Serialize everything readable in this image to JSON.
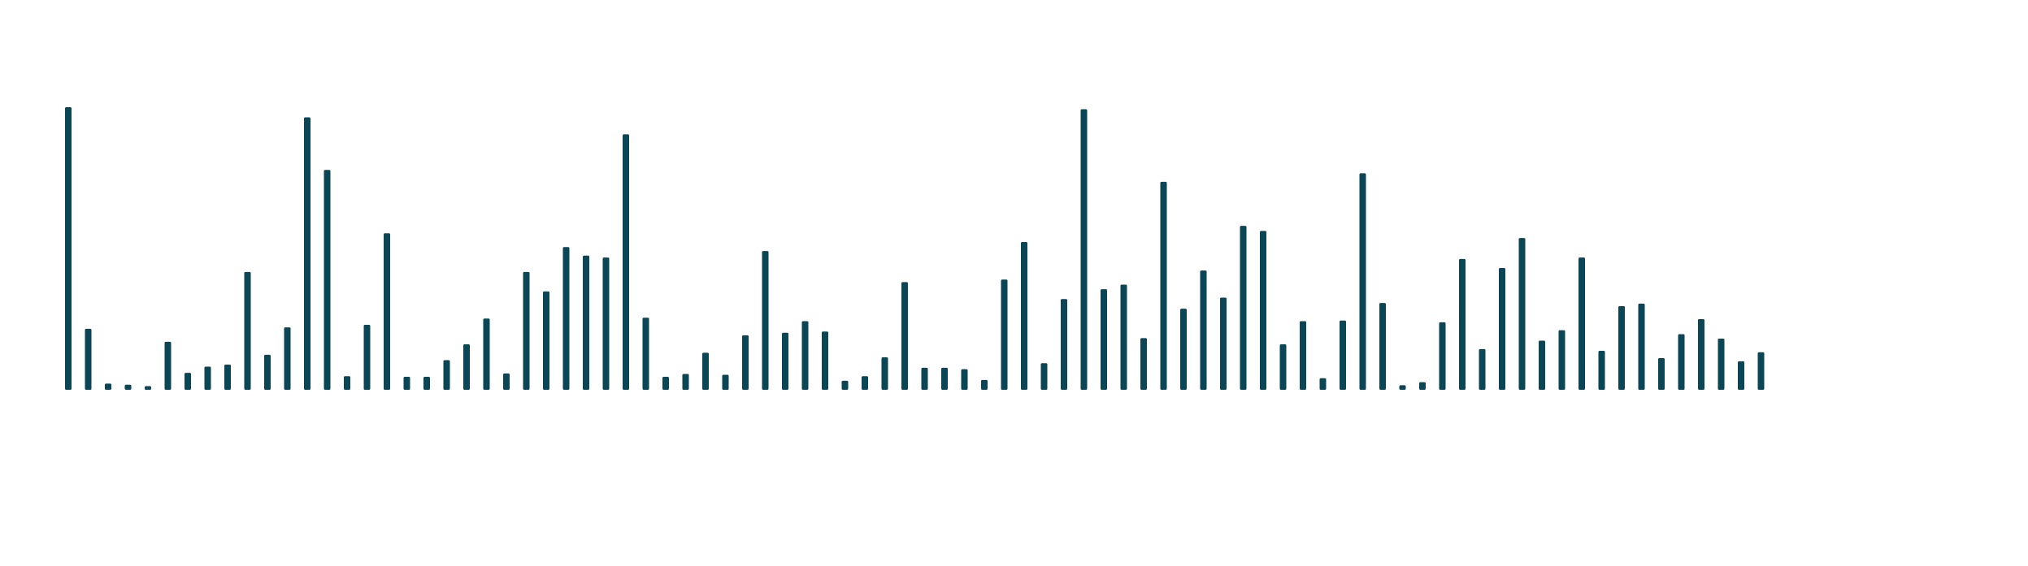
{
  "chart_data": {
    "type": "bar",
    "title": "",
    "xlabel": "",
    "ylabel": "",
    "grid": false,
    "legend": "none",
    "bar_color": "#0b4657",
    "ylim": [
      0,
      100
    ],
    "values": [
      100,
      21.6,
      2.2,
      1.8,
      1.3,
      17,
      6,
      8.2,
      8.9,
      41.7,
      12.4,
      22.1,
      96.4,
      77.8,
      4.8,
      23,
      55.4,
      4.6,
      4.6,
      10.5,
      16.1,
      25.2,
      5.8,
      41.7,
      34.8,
      50.5,
      47.5,
      46.8,
      90.4,
      25.5,
      4.6,
      5.6,
      13.1,
      5.3,
      19.3,
      49.1,
      20.2,
      24.3,
      20.6,
      3.2,
      4.8,
      11.5,
      38.1,
      7.8,
      7.8,
      7.3,
      3.5,
      39,
      52.3,
      9.4,
      32.1,
      99.3,
      35.6,
      37.2,
      18.3,
      73.6,
      28.7,
      42.2,
      32.6,
      58,
      56.2,
      16.1,
      24.3,
      4.1,
      24.5,
      76.6,
      30.7,
      1.6,
      2.7,
      23.9,
      46.3,
      14.4,
      43.1,
      53.7,
      17.4,
      21.1,
      46.8,
      13.8,
      29.6,
      30.5,
      11.2,
      19.7,
      25,
      18.1,
      10.1,
      13.3
    ]
  }
}
